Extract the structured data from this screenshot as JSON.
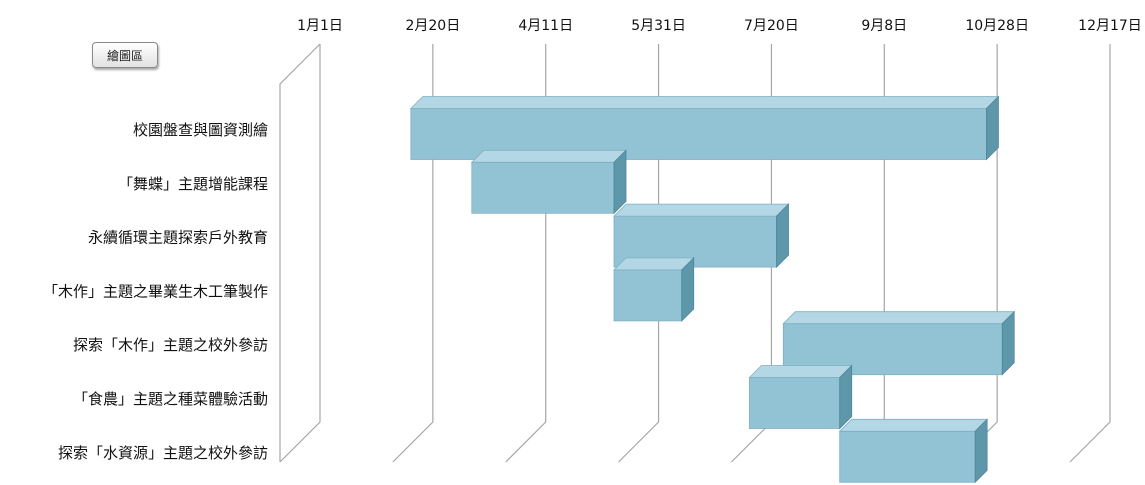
{
  "plot_area_label": "繪圖區",
  "colors": {
    "bar_front": "#91c3d5",
    "bar_top": "#b3d7e4",
    "bar_side": "#5e97aa",
    "grid": "#a6a6a6"
  },
  "chart_data": {
    "type": "bar",
    "orientation": "horizontal",
    "style": "3d-gantt",
    "x_ticks": [
      "1月1日",
      "2月20日",
      "4月11日",
      "5月31日",
      "7月20日",
      "9月8日",
      "10月28日",
      "12月17日"
    ],
    "x_tick_days": [
      0,
      50,
      100,
      150,
      200,
      250,
      300,
      350
    ],
    "xlim": [
      0,
      350
    ],
    "grid": true,
    "categories": [
      "校園盤查與圖資測繪",
      "「舞蝶」主題增能課程",
      "永續循環主題探索戶外教育",
      "「木作」主題之畢業生木工筆製作",
      "探索「木作」主題之校外參訪",
      "「食農」主題之種菜體驗活動",
      "探索「水資源」主題之校外參訪"
    ],
    "tasks": [
      {
        "start": 50,
        "end": 305
      },
      {
        "start": 77,
        "end": 140
      },
      {
        "start": 140,
        "end": 212
      },
      {
        "start": 140,
        "end": 170
      },
      {
        "start": 215,
        "end": 312
      },
      {
        "start": 200,
        "end": 240
      },
      {
        "start": 240,
        "end": 300
      }
    ]
  }
}
